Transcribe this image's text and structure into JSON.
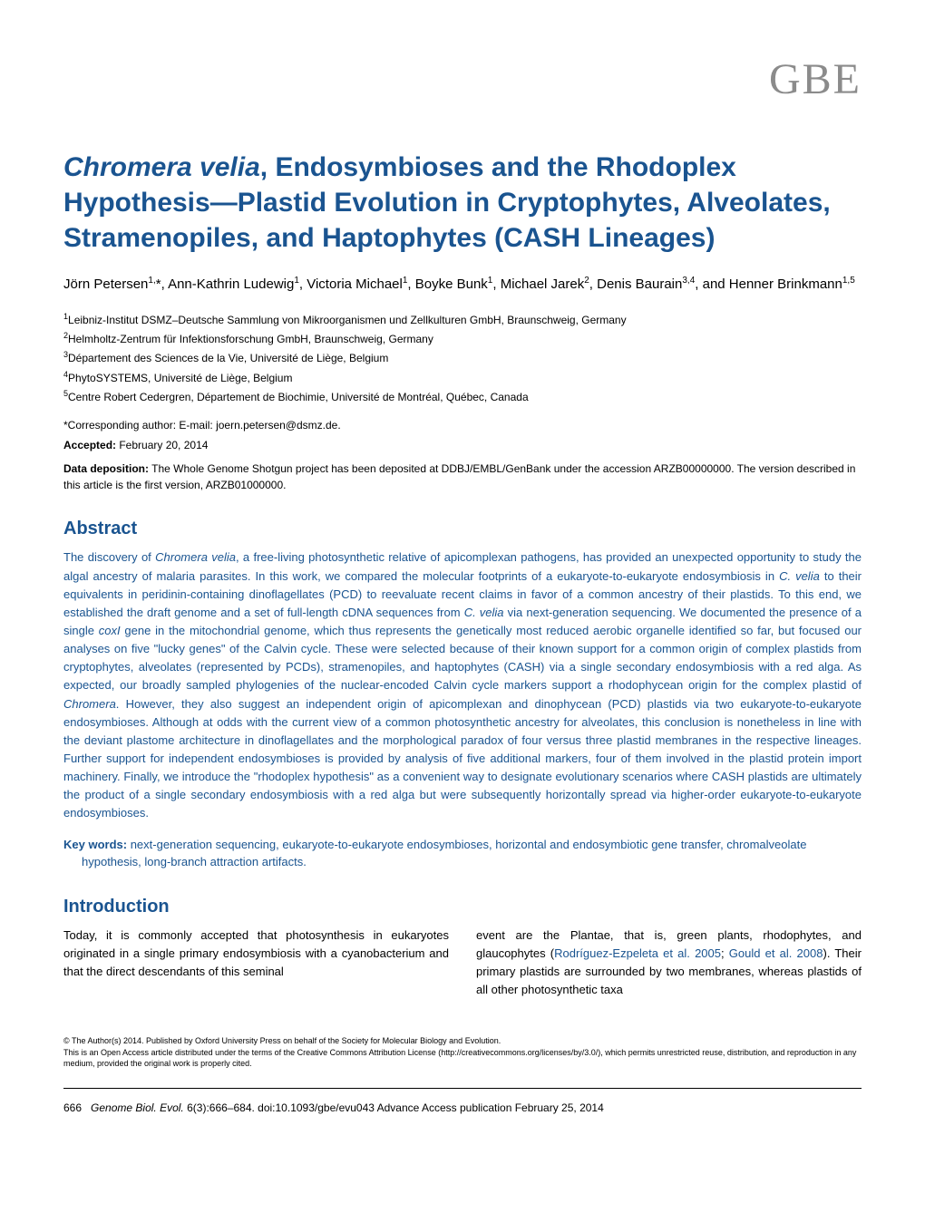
{
  "journal_logo": "GBE",
  "title_parts": {
    "italic_species": "Chromera velia",
    "rest": ", Endosymbioses and the Rhodoplex Hypothesis—Plastid Evolution in Cryptophytes, Alveolates, Stramenopiles, and Haptophytes (CASH Lineages)"
  },
  "authors_html": "Jörn Petersen<sup>1,</sup>*, Ann-Kathrin Ludewig<sup>1</sup>, Victoria Michael<sup>1</sup>, Boyke Bunk<sup>1</sup>, Michael Jarek<sup>2</sup>, Denis Baurain<sup>3,4</sup>, and Henner Brinkmann<sup>1,5</sup>",
  "affiliations": [
    "<sup>1</sup>Leibniz-Institut DSMZ–Deutsche Sammlung von Mikroorganismen und Zellkulturen GmbH, Braunschweig, Germany",
    "<sup>2</sup>Helmholtz-Zentrum für Infektionsforschung GmbH, Braunschweig, Germany",
    "<sup>3</sup>Département des Sciences de la Vie, Université de Liège, Belgium",
    "<sup>4</sup>PhytoSYSTEMS, Université de Liège, Belgium",
    "<sup>5</sup>Centre Robert Cedergren, Département de Biochimie, Université de Montréal, Québec, Canada"
  ],
  "correspondence": "*Corresponding author: E-mail: joern.petersen@dsmz.de.",
  "accepted_label": "Accepted:",
  "accepted_date": " February 20, 2014",
  "data_deposition_label": "Data deposition:",
  "data_deposition_text": " The Whole Genome Shotgun project has been deposited at DDBJ/EMBL/GenBank under the accession ARZB00000000. The version described in this article is the first version, ARZB01000000.",
  "abstract_heading": "Abstract",
  "abstract_text": "The discovery of <span class=\"italic\">Chromera velia</span>, a free-living photosynthetic relative of apicomplexan pathogens, has provided an unexpected opportunity to study the algal ancestry of malaria parasites. In this work, we compared the molecular footprints of a eukaryote-to-eukaryote endosymbiosis in <span class=\"italic\">C. velia</span> to their equivalents in peridinin-containing dinoflagellates (PCD) to reevaluate recent claims in favor of a common ancestry of their plastids. To this end, we established the draft genome and a set of full-length cDNA sequences from <span class=\"italic\">C. velia</span> via next-generation sequencing. We documented the presence of a single <span class=\"italic\">coxI</span> gene in the mitochondrial genome, which thus represents the genetically most reduced aerobic organelle identified so far, but focused our analyses on five \"lucky genes\" of the Calvin cycle. These were selected because of their known support for a common origin of complex plastids from cryptophytes, alveolates (represented by PCDs), stramenopiles, and haptophytes (CASH) via a single secondary endosymbiosis with a red alga. As expected, our broadly sampled phylogenies of the nuclear-encoded Calvin cycle markers support a rhodophycean origin for the complex plastid of <span class=\"italic\">Chromera</span>. However, they also suggest an independent origin of apicomplexan and dinophycean (PCD) plastids via two eukaryote-to-eukaryote endosymbioses. Although at odds with the current view of a common photosynthetic ancestry for alveolates, this conclusion is nonetheless in line with the deviant plastome architecture in dinoflagellates and the morphological paradox of four versus three plastid membranes in the respective lineages. Further support for independent endosymbioses is provided by analysis of five additional markers, four of them involved in the plastid protein import machinery. Finally, we introduce the \"rhodoplex hypothesis\" as a convenient way to designate evolutionary scenarios where CASH plastids are ultimately the product of a single secondary endosymbiosis with a red alga but were subsequently horizontally spread via higher-order eukaryote-to-eukaryote endosymbioses.",
  "keywords_label": "Key words:",
  "keywords_text": " next-generation sequencing, eukaryote-to-eukaryote endosymbioses, horizontal and endosymbiotic gene transfer, chromalveolate hypothesis, long-branch attraction artifacts.",
  "intro_heading": "Introduction",
  "intro_col1": "Today, it is commonly accepted that photosynthesis in eukaryotes originated in a single primary endosymbiosis with a cyanobacterium and that the direct descendants of this seminal",
  "intro_col2_text": "event are the Plantae, that is, green plants, rhodophytes, and glaucophytes (",
  "intro_col2_ref1": "Rodríguez-Ezpeleta et al. 2005",
  "intro_col2_semi": "; ",
  "intro_col2_ref2": "Gould et al. 2008",
  "intro_col2_tail": "). Their primary plastids are surrounded by two membranes, whereas plastids of all other photosynthetic taxa",
  "copyright": "© The Author(s) 2014. Published by Oxford University Press on behalf of the Society for Molecular Biology and Evolution.\nThis is an Open Access article distributed under the terms of the Creative Commons Attribution License (http://creativecommons.org/licenses/by/3.0/), which permits unrestricted reuse, distribution, and reproduction in any medium, provided the original work is properly cited.",
  "footer": {
    "page": "666",
    "journal_italic": "Genome Biol. Evol.",
    "citation": " 6(3):666–684.   doi:10.1093/gbe/evu043   Advance Access publication February 25, 2014"
  },
  "colors": {
    "heading_blue": "#1a5490",
    "logo_gray": "#8b8b8b",
    "body_text": "#000000",
    "background": "#ffffff"
  },
  "typography": {
    "title_fontsize": 30,
    "section_heading_fontsize": 20,
    "body_fontsize": 13,
    "small_fontsize": 12,
    "footnote_fontsize": 9,
    "logo_fontsize": 48
  }
}
